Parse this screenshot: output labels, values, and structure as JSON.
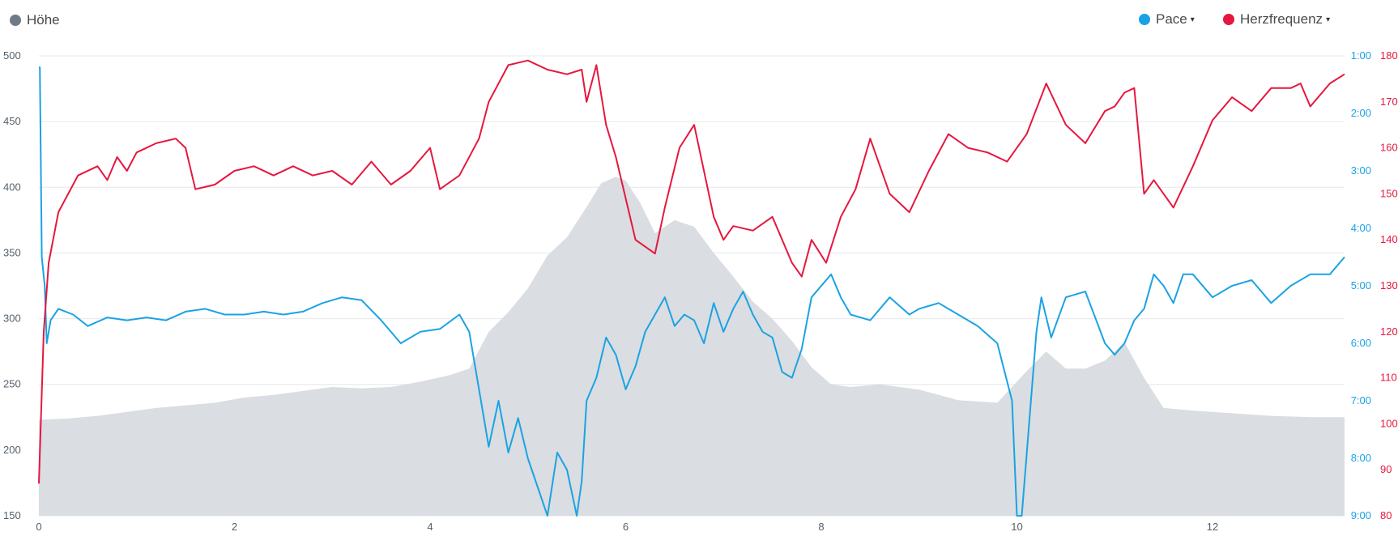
{
  "legend": {
    "elevation_label": "Höhe",
    "pace_label": "Pace",
    "hr_label": "Herzfrequenz",
    "caret": "▾"
  },
  "colors": {
    "elevation_fill": "#dadde1",
    "elevation_dot": "#6e7b87",
    "pace": "#1aa3e4",
    "hr": "#e6173f",
    "grid": "#e4e7ea",
    "axis_text": "#55606b"
  },
  "chart_data": {
    "type": "line",
    "x_ticks": [
      "0",
      "2",
      "4",
      "6",
      "8",
      "10",
      "12"
    ],
    "x_range": [
      0,
      13.35
    ],
    "elevation_axis": {
      "ticks": [
        "500",
        "450",
        "400",
        "350",
        "300",
        "250",
        "200",
        "150"
      ],
      "range": [
        150,
        500
      ]
    },
    "pace_axis": {
      "ticks": [
        "1:00",
        "2:00",
        "3:00",
        "4:00",
        "5:00",
        "6:00",
        "7:00",
        "8:00",
        "9:00"
      ],
      "range_min": [
        1,
        9
      ],
      "inverted": true
    },
    "hr_axis": {
      "ticks": [
        "180",
        "170",
        "160",
        "150",
        "140",
        "130",
        "120",
        "110",
        "100",
        "90",
        "80"
      ],
      "range": [
        80,
        180
      ]
    },
    "series": [
      {
        "name": "Höhe",
        "type": "area",
        "x": [
          0,
          0.3,
          0.6,
          0.9,
          1.2,
          1.5,
          1.8,
          2.1,
          2.4,
          2.7,
          3.0,
          3.3,
          3.6,
          3.9,
          4.2,
          4.4,
          4.6,
          4.8,
          5.0,
          5.2,
          5.4,
          5.6,
          5.75,
          5.9,
          6.0,
          6.15,
          6.3,
          6.5,
          6.7,
          6.9,
          7.1,
          7.3,
          7.5,
          7.7,
          7.9,
          8.1,
          8.3,
          8.6,
          9.0,
          9.4,
          9.8,
          10.1,
          10.3,
          10.5,
          10.7,
          10.9,
          11.1,
          11.3,
          11.5,
          11.8,
          12.2,
          12.6,
          13.0,
          13.35
        ],
        "values": [
          223,
          224,
          226,
          229,
          232,
          234,
          236,
          240,
          242,
          245,
          248,
          247,
          248,
          252,
          257,
          262,
          290,
          305,
          323,
          348,
          362,
          385,
          403,
          408,
          405,
          388,
          365,
          375,
          370,
          350,
          332,
          313,
          300,
          283,
          263,
          250,
          248,
          250,
          246,
          238,
          236,
          260,
          275,
          262,
          262,
          268,
          282,
          255,
          232,
          230,
          228,
          226,
          225,
          225
        ]
      },
      {
        "name": "Pace",
        "type": "line",
        "x": [
          0,
          0.01,
          0.03,
          0.06,
          0.08,
          0.12,
          0.2,
          0.35,
          0.5,
          0.7,
          0.9,
          1.1,
          1.3,
          1.5,
          1.7,
          1.9,
          2.1,
          2.3,
          2.5,
          2.7,
          2.9,
          3.1,
          3.3,
          3.5,
          3.7,
          3.9,
          4.1,
          4.3,
          4.4,
          4.5,
          4.6,
          4.7,
          4.8,
          4.9,
          5.0,
          5.1,
          5.2,
          5.3,
          5.4,
          5.5,
          5.55,
          5.6,
          5.7,
          5.8,
          5.9,
          6.0,
          6.1,
          6.2,
          6.3,
          6.4,
          6.5,
          6.6,
          6.7,
          6.8,
          6.9,
          7.0,
          7.1,
          7.2,
          7.3,
          7.4,
          7.5,
          7.6,
          7.7,
          7.8,
          7.9,
          8.0,
          8.1,
          8.2,
          8.3,
          8.5,
          8.7,
          8.9,
          9.0,
          9.2,
          9.4,
          9.6,
          9.8,
          9.95,
          10.0,
          10.05,
          10.2,
          10.25,
          10.35,
          10.5,
          10.7,
          10.9,
          11.0,
          11.1,
          11.2,
          11.3,
          11.4,
          11.5,
          11.6,
          11.7,
          11.8,
          12.0,
          12.2,
          12.4,
          12.6,
          12.8,
          13.0,
          13.2,
          13.35
        ],
        "values": [
          1.2,
          1.2,
          4.5,
          5.0,
          6.0,
          5.6,
          5.4,
          5.5,
          5.7,
          5.55,
          5.6,
          5.55,
          5.6,
          5.45,
          5.4,
          5.5,
          5.5,
          5.45,
          5.5,
          5.45,
          5.3,
          5.2,
          5.25,
          5.6,
          6.0,
          5.8,
          5.75,
          5.5,
          5.8,
          6.8,
          7.8,
          7.0,
          7.9,
          7.3,
          8.0,
          8.5,
          9.0,
          7.9,
          8.2,
          9.0,
          8.4,
          7.0,
          6.6,
          5.9,
          6.2,
          6.8,
          6.4,
          5.8,
          5.5,
          5.2,
          5.7,
          5.5,
          5.6,
          6.0,
          5.3,
          5.8,
          5.4,
          5.1,
          5.5,
          5.8,
          5.9,
          6.5,
          6.6,
          6.1,
          5.2,
          5.0,
          4.8,
          5.2,
          5.5,
          5.6,
          5.2,
          5.5,
          5.4,
          5.3,
          5.5,
          5.7,
          6.0,
          7.0,
          9.0,
          9.0,
          5.8,
          5.2,
          5.9,
          5.2,
          5.1,
          6.0,
          6.2,
          6.0,
          5.6,
          5.4,
          4.8,
          5.0,
          5.3,
          4.8,
          4.8,
          5.2,
          5.0,
          4.9,
          5.3,
          5.0,
          4.8,
          4.8,
          4.5
        ]
      },
      {
        "name": "Herzfrequenz",
        "type": "line",
        "x": [
          0,
          0.05,
          0.1,
          0.2,
          0.3,
          0.4,
          0.6,
          0.7,
          0.8,
          0.9,
          1.0,
          1.2,
          1.4,
          1.5,
          1.6,
          1.8,
          2.0,
          2.2,
          2.4,
          2.6,
          2.8,
          3.0,
          3.2,
          3.4,
          3.6,
          3.8,
          4.0,
          4.1,
          4.3,
          4.5,
          4.6,
          4.8,
          5.0,
          5.2,
          5.4,
          5.55,
          5.6,
          5.7,
          5.8,
          5.9,
          6.1,
          6.3,
          6.4,
          6.55,
          6.7,
          6.9,
          7.0,
          7.1,
          7.3,
          7.5,
          7.7,
          7.8,
          7.9,
          8.05,
          8.2,
          8.35,
          8.5,
          8.7,
          8.9,
          9.1,
          9.3,
          9.5,
          9.7,
          9.9,
          10.1,
          10.3,
          10.5,
          10.7,
          10.9,
          11.0,
          11.1,
          11.2,
          11.3,
          11.4,
          11.6,
          11.8,
          12.0,
          12.2,
          12.4,
          12.6,
          12.8,
          12.9,
          13.0,
          13.2,
          13.35
        ],
        "values": [
          87,
          120,
          135,
          146,
          150,
          154,
          156,
          153,
          158,
          155,
          159,
          161,
          162,
          160,
          151,
          152,
          155,
          156,
          154,
          156,
          154,
          155,
          152,
          157,
          152,
          155,
          160,
          151,
          154,
          162,
          170,
          178,
          179,
          177,
          176,
          177,
          170,
          178,
          165,
          158,
          140,
          137,
          147,
          160,
          165,
          145,
          140,
          143,
          142,
          145,
          135,
          132,
          140,
          135,
          145,
          151,
          162,
          150,
          146,
          155,
          163,
          160,
          159,
          157,
          163,
          174,
          165,
          161,
          168,
          169,
          172,
          173,
          150,
          153,
          147,
          156,
          166,
          171,
          168,
          173,
          173,
          174,
          169,
          174,
          176
        ]
      }
    ]
  }
}
